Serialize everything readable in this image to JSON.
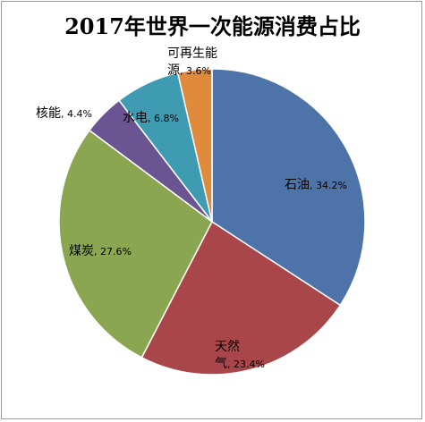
{
  "chart_data": {
    "type": "pie",
    "title": "2017年世界一次能源消费占比",
    "slices": [
      {
        "name": "石油",
        "value": 34.2,
        "color": "#4E73A8",
        "label_lines": [
          "石油, 34.2%"
        ]
      },
      {
        "name": "天然气",
        "value": 23.4,
        "color": "#A9464A",
        "label_lines": [
          "天然",
          "气, 23.4%"
        ]
      },
      {
        "name": "煤炭",
        "value": 27.6,
        "color": "#8AA651",
        "label_lines": [
          "煤炭, 27.6%"
        ]
      },
      {
        "name": "核能",
        "value": 4.4,
        "color": "#6A5491",
        "label_lines": [
          "核能, 4.4%"
        ]
      },
      {
        "name": "水电",
        "value": 6.8,
        "color": "#3F9BB2",
        "label_lines": [
          "水电, 6.8%"
        ]
      },
      {
        "name": "可再生能源",
        "value": 3.6,
        "color": "#E08A3C",
        "label_lines": [
          "可再生能",
          "源, 3.6%"
        ]
      }
    ],
    "legend": "none"
  }
}
